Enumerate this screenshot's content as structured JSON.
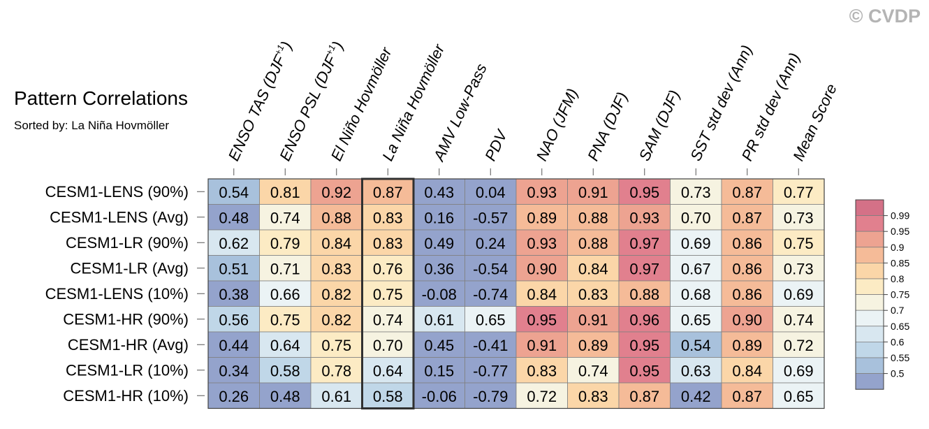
{
  "title": "Pattern Correlations",
  "subtitle": "Sorted by: La Niña Hovmöller",
  "watermark": "© CVDP",
  "chart_data": {
    "type": "heatmap",
    "title": "Pattern Correlations",
    "subtitle": "Sorted by: La Niña Hovmöller",
    "sorted_by": "La Niña Hovmöller",
    "highlight_column": 3,
    "columns": [
      {
        "name": "ENSO TAS (DJF",
        "sup": "+1",
        "tail": ")"
      },
      {
        "name": "ENSO PSL (DJF",
        "sup": "+1",
        "tail": ")"
      },
      {
        "name": "El Niño Hovmöller"
      },
      {
        "name": "La Niña Hovmöller"
      },
      {
        "name": "AMV Low-Pass"
      },
      {
        "name": "PDV"
      },
      {
        "name": "NAO (JFM)"
      },
      {
        "name": "PNA (DJF)"
      },
      {
        "name": "SAM (DJF)"
      },
      {
        "name": "SST std dev (Ann)"
      },
      {
        "name": "PR std dev (Ann)"
      },
      {
        "name": "Mean Score"
      }
    ],
    "rows": [
      "CESM1-LENS (90%)",
      "CESM1-LENS (Avg)",
      "CESM1-LR (90%)",
      "CESM1-LR (Avg)",
      "CESM1-LENS (10%)",
      "CESM1-HR (90%)",
      "CESM1-HR (Avg)",
      "CESM1-LR (10%)",
      "CESM1-HR (10%)"
    ],
    "values": [
      [
        0.54,
        0.81,
        0.92,
        0.87,
        0.43,
        0.04,
        0.93,
        0.91,
        0.95,
        0.73,
        0.87,
        0.77
      ],
      [
        0.48,
        0.74,
        0.88,
        0.83,
        0.16,
        -0.57,
        0.89,
        0.88,
        0.93,
        0.7,
        0.87,
        0.73
      ],
      [
        0.62,
        0.79,
        0.84,
        0.83,
        0.49,
        0.24,
        0.93,
        0.88,
        0.97,
        0.69,
        0.86,
        0.75
      ],
      [
        0.51,
        0.71,
        0.83,
        0.76,
        0.36,
        -0.54,
        0.9,
        0.84,
        0.97,
        0.67,
        0.86,
        0.73
      ],
      [
        0.38,
        0.66,
        0.82,
        0.75,
        -0.08,
        -0.74,
        0.84,
        0.83,
        0.88,
        0.68,
        0.86,
        0.69
      ],
      [
        0.56,
        0.75,
        0.82,
        0.74,
        0.61,
        0.65,
        0.95,
        0.91,
        0.96,
        0.65,
        0.9,
        0.74
      ],
      [
        0.44,
        0.64,
        0.75,
        0.7,
        0.45,
        -0.41,
        0.91,
        0.89,
        0.95,
        0.54,
        0.89,
        0.72
      ],
      [
        0.34,
        0.58,
        0.78,
        0.64,
        0.15,
        -0.77,
        0.83,
        0.74,
        0.95,
        0.63,
        0.84,
        0.69
      ],
      [
        0.26,
        0.48,
        0.61,
        0.58,
        -0.06,
        -0.79,
        0.72,
        0.83,
        0.87,
        0.42,
        0.87,
        0.65
      ]
    ],
    "colorbar": {
      "levels": [
        "0.99",
        "0.95",
        "0.9",
        "0.85",
        "0.8",
        "0.75",
        "0.7",
        "0.65",
        "0.6",
        "0.55",
        "0.5"
      ],
      "thresholds": [
        0.5,
        0.55,
        0.6,
        0.65,
        0.7,
        0.75,
        0.8,
        0.85,
        0.9,
        0.95,
        0.99
      ],
      "colors": [
        "#94a3cc",
        "#a8c1dc",
        "#c0d7e8",
        "#d8e7f0",
        "#ebf3f5",
        "#f6f3e1",
        "#fcebc4",
        "#fbd6a8",
        "#f5bb98",
        "#eda391",
        "#e1808e",
        "#d47187"
      ]
    }
  }
}
